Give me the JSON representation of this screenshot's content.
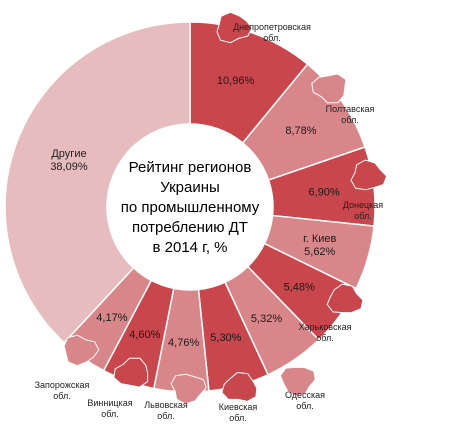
{
  "chart_data": {
    "type": "pie",
    "title_lines": [
      "Рейтинг регионов",
      "Украины",
      "по промышленному",
      "потреблению ДТ",
      "в 2014 г, %"
    ],
    "slices": [
      {
        "value": 10.96,
        "label": "10,96%",
        "region": [
          "Днепропетровская",
          "обл."
        ],
        "color": "#c8464c"
      },
      {
        "value": 8.78,
        "label": "8,78%",
        "region": [
          "Полтавская",
          "обл."
        ],
        "color": "#d9868a"
      },
      {
        "value": 6.9,
        "label": "6,90%",
        "region": [
          "Донецкая",
          "обл."
        ],
        "color": "#c8464c"
      },
      {
        "value": 5.62,
        "label": "г. Киев\n5,62%",
        "region": [],
        "color": "#d9868a"
      },
      {
        "value": 5.48,
        "label": "5,48%",
        "region": [
          "Харьковская",
          "обл."
        ],
        "color": "#c8464c"
      },
      {
        "value": 5.32,
        "label": "5,32%",
        "region": [
          "Одесская",
          "обл."
        ],
        "color": "#d9868a"
      },
      {
        "value": 5.3,
        "label": "5,30%",
        "region": [
          "Киевская",
          "обл."
        ],
        "color": "#c8464c"
      },
      {
        "value": 4.76,
        "label": "4,76%",
        "region": [
          "Львовская",
          "обл."
        ],
        "color": "#d9868a"
      },
      {
        "value": 4.6,
        "label": "4,60%",
        "region": [
          "Винницкая",
          "обл."
        ],
        "color": "#c8464c"
      },
      {
        "value": 4.17,
        "label": "4,17%",
        "region": [
          "Запорожская",
          "обл."
        ],
        "color": "#d9868a"
      },
      {
        "value": 38.09,
        "label": "Другие\n38,09%",
        "region": [],
        "color": "#e6bcbe"
      }
    ]
  }
}
